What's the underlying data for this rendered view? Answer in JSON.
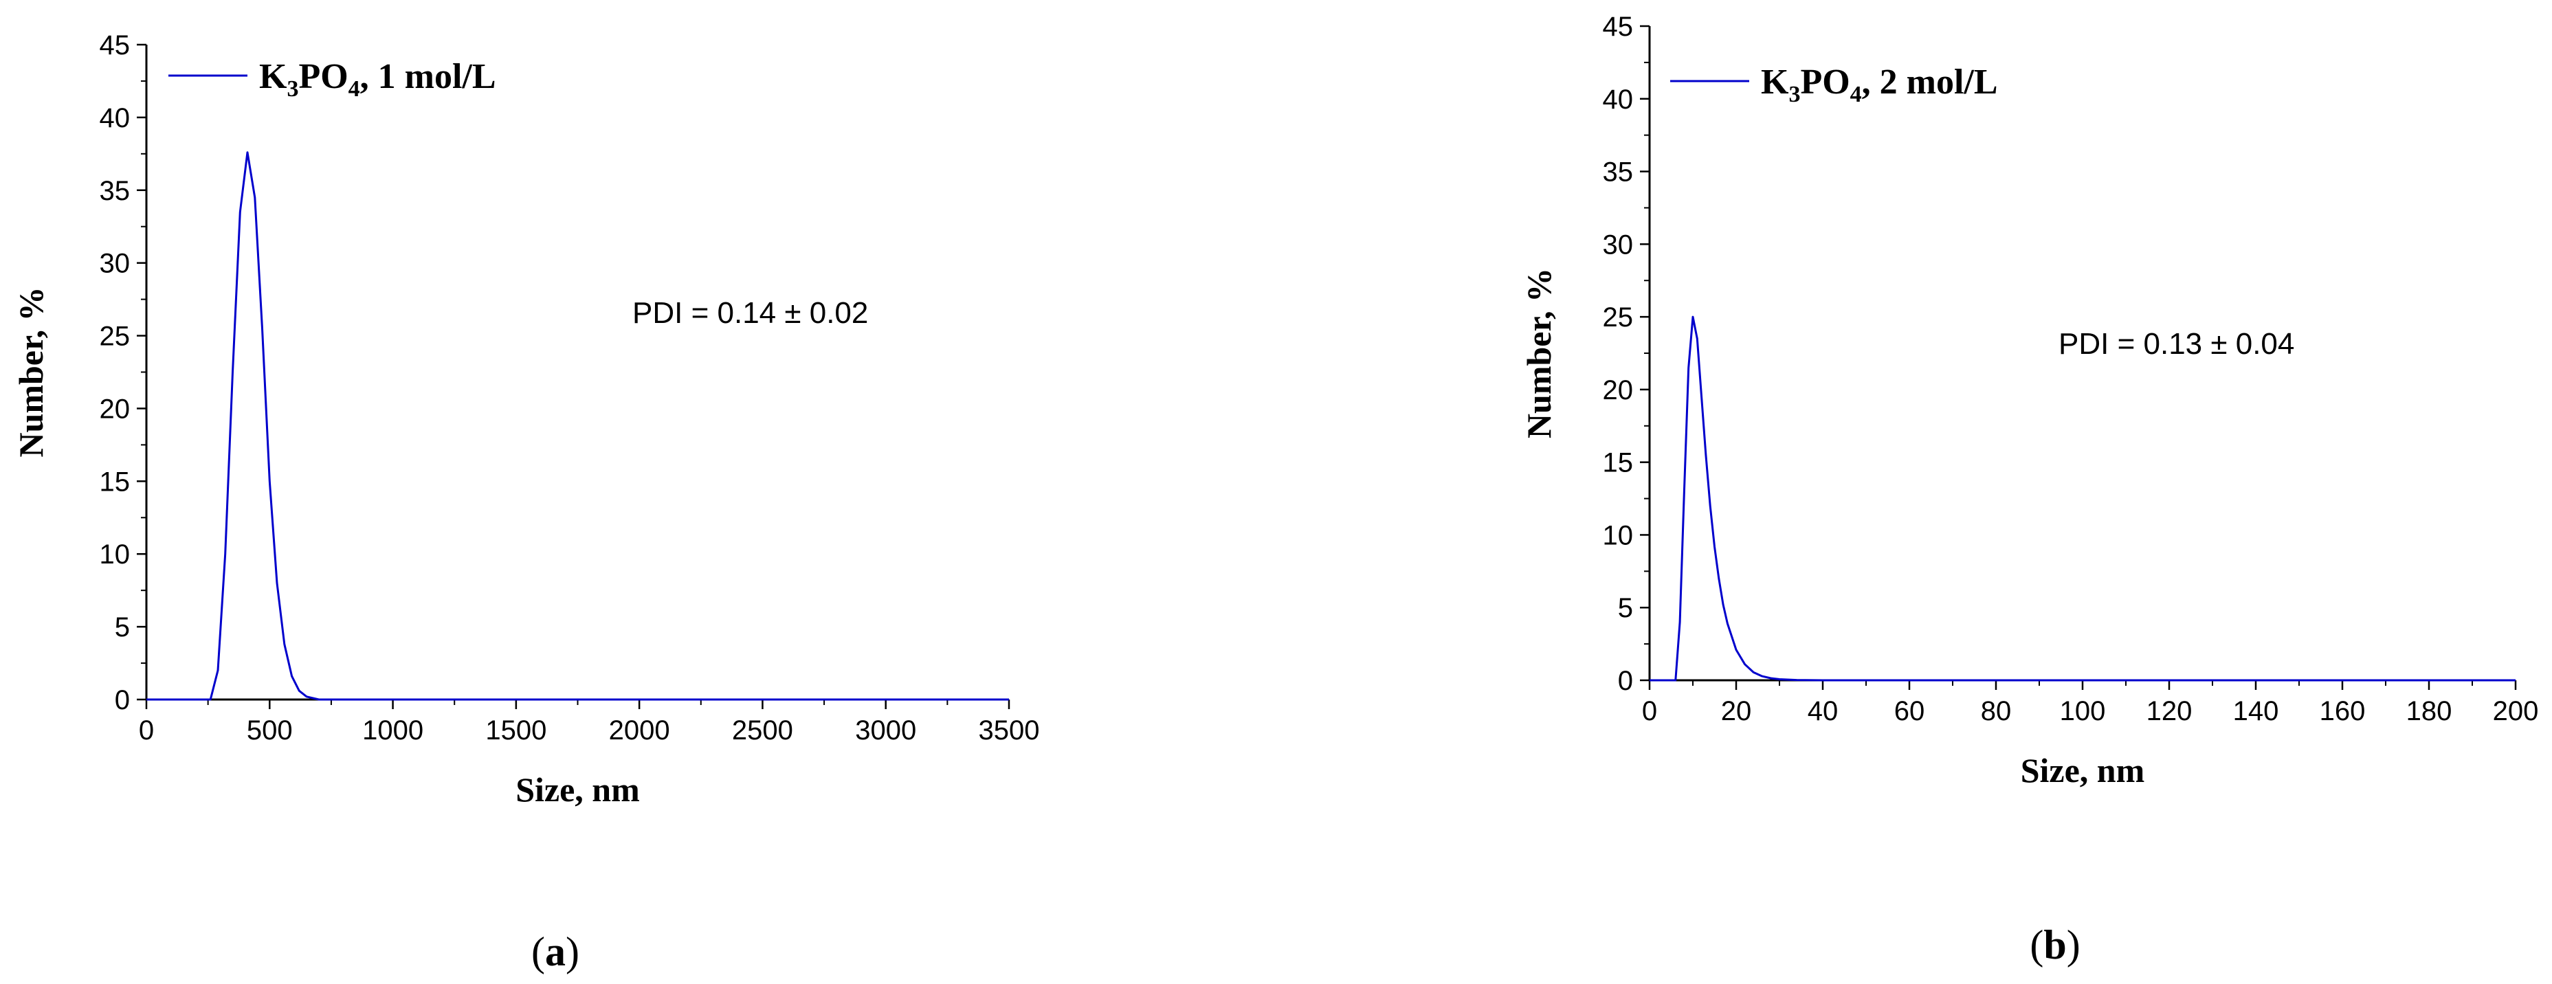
{
  "chart_data": [
    {
      "type": "line",
      "panel_label": {
        "open": "(",
        "letter": "a",
        "close": ")"
      },
      "xlabel": "Size, nm",
      "ylabel": "Number, %",
      "xlim": [
        0,
        3500
      ],
      "ylim": [
        0,
        45
      ],
      "x_ticks": [
        0,
        500,
        1000,
        1500,
        2000,
        2500,
        3000,
        3500
      ],
      "y_ticks": [
        0,
        5,
        10,
        15,
        20,
        25,
        30,
        35,
        40,
        45
      ],
      "grid": false,
      "legend_position": "top-left",
      "legend": {
        "prefix": "K",
        "sub1": "3",
        "mid": "PO",
        "sub2": "4",
        "suffix": ", 1 mol/L"
      },
      "annotation": "PDI = 0.14 ± 0.02",
      "color": "#0000cc",
      "series": [
        {
          "x": [
            0,
            260,
            290,
            320,
            350,
            380,
            410,
            440,
            470,
            500,
            530,
            560,
            590,
            620,
            650,
            700,
            3500
          ],
          "y": [
            0,
            0,
            2.0,
            10.0,
            22.5,
            33.5,
            37.6,
            34.5,
            25.5,
            15.0,
            8.0,
            3.8,
            1.6,
            0.6,
            0.2,
            0,
            0
          ]
        }
      ]
    },
    {
      "type": "line",
      "panel_label": {
        "open": "(",
        "letter": "b",
        "close": ")"
      },
      "xlabel": "Size, nm",
      "ylabel": "Number, %",
      "xlim": [
        0,
        200
      ],
      "ylim": [
        0,
        45
      ],
      "x_ticks": [
        0,
        20,
        40,
        60,
        80,
        100,
        120,
        140,
        160,
        180,
        200
      ],
      "y_ticks": [
        0,
        5,
        10,
        15,
        20,
        25,
        30,
        35,
        40,
        45
      ],
      "grid": false,
      "legend_position": "top-left",
      "legend": {
        "prefix": "K",
        "sub1": "3",
        "mid": "PO",
        "sub2": "4",
        "suffix": ", 2 mol/L"
      },
      "annotation": "PDI = 0.13 ± 0.04",
      "color": "#0000cc",
      "series": [
        {
          "x": [
            0,
            6,
            7,
            8,
            9,
            10,
            11,
            12,
            13,
            14,
            15,
            16,
            17,
            18,
            20,
            22,
            24,
            26,
            28,
            30,
            34,
            40,
            200
          ],
          "y": [
            0,
            0,
            4.0,
            13.0,
            21.5,
            25.0,
            23.5,
            19.5,
            15.5,
            12.0,
            9.2,
            7.0,
            5.2,
            3.9,
            2.1,
            1.1,
            0.55,
            0.28,
            0.14,
            0.07,
            0.02,
            0,
            0
          ]
        }
      ]
    }
  ]
}
